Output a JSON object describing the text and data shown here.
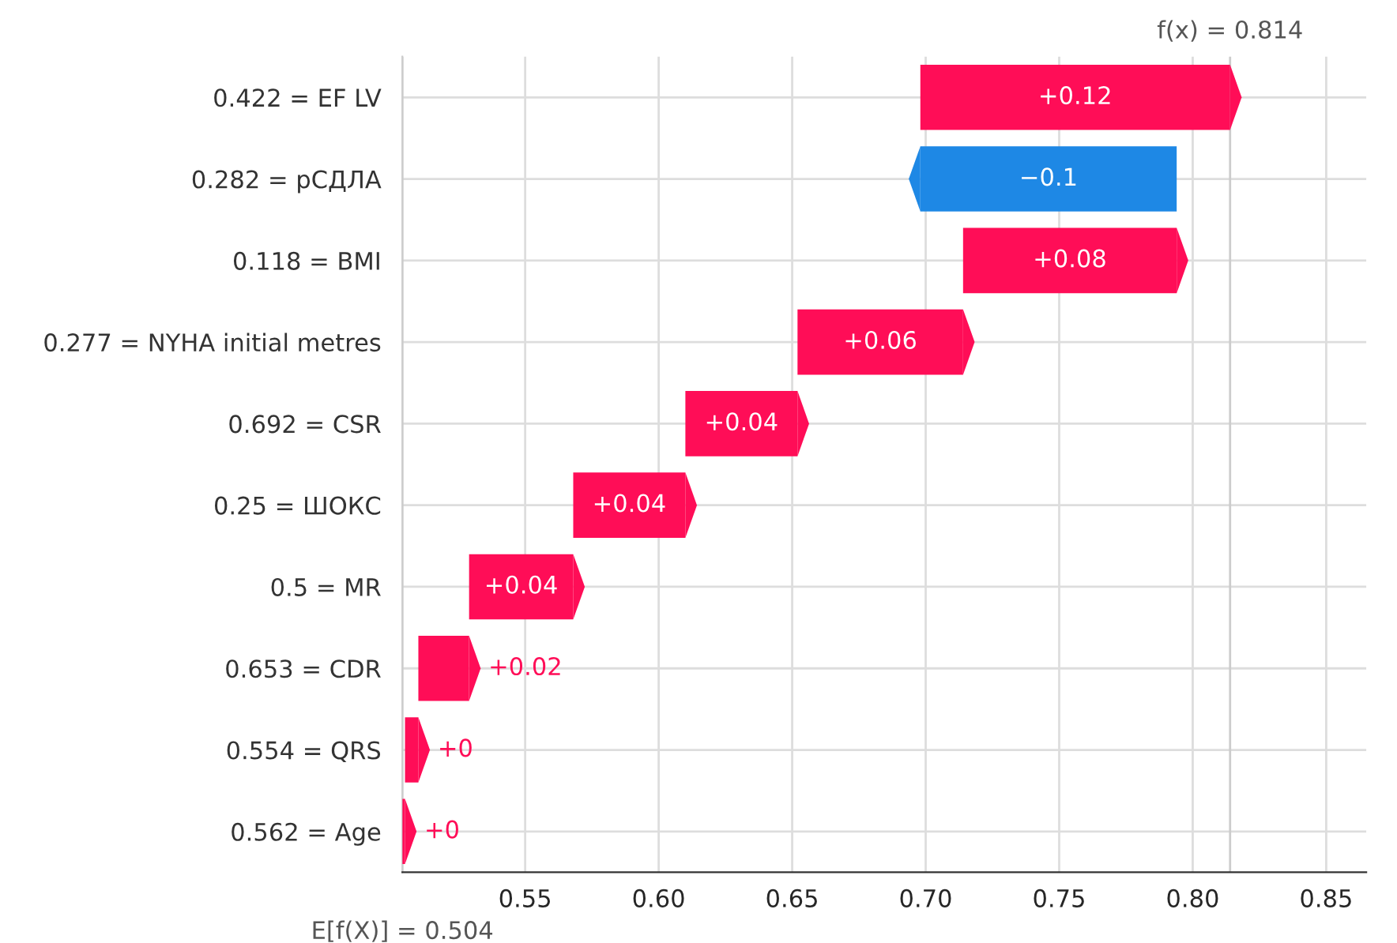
{
  "chart_data": {
    "type": "bar",
    "orientation": "horizontal",
    "categories": [
      "0.422 = EF LV",
      "0.282 = рСДЛА",
      "0.118 = BMI",
      "0.277 = NYHA initial metres",
      "0.692 = CSR",
      "0.25 = ШОКС",
      "0.5 = MR",
      "0.653 = CDR",
      "0.554 = QRS",
      "0.562 = Age"
    ],
    "base": [
      0.698,
      0.794,
      0.714,
      0.652,
      0.61,
      0.568,
      0.529,
      0.51,
      0.505,
      0.504
    ],
    "values": [
      0.116,
      -0.096,
      0.08,
      0.062,
      0.042,
      0.042,
      0.039,
      0.019,
      0.005,
      0.001
    ],
    "colors": [
      "#ff0d57",
      "#1e88e5",
      "#ff0d57",
      "#ff0d57",
      "#ff0d57",
      "#ff0d57",
      "#ff0d57",
      "#ff0d57",
      "#ff0d57",
      "#ff0d57"
    ],
    "value_labels": [
      "+0.12",
      "−0.1",
      "+0.08",
      "+0.06",
      "+0.04",
      "+0.04",
      "+0.04",
      "+0.02",
      "+0",
      "+0"
    ],
    "xlim": [
      0.504,
      0.865
    ],
    "xticks": [
      0.55,
      {
        "value": 0.6,
        "label": "0.60"
      },
      0.65,
      {
        "value": 0.7,
        "label": "0.70"
      },
      0.75,
      {
        "value": 0.8,
        "label": "0.80"
      },
      0.85
    ],
    "grid": true,
    "ref_lines": [
      {
        "axis": "x",
        "value": 0.814,
        "label": "f(x) = 0.814",
        "color": "#cccccc"
      },
      {
        "axis": "x",
        "value": 0.504,
        "label": "E[f(X)] = 0.504",
        "color": "#cccccc"
      }
    ]
  }
}
